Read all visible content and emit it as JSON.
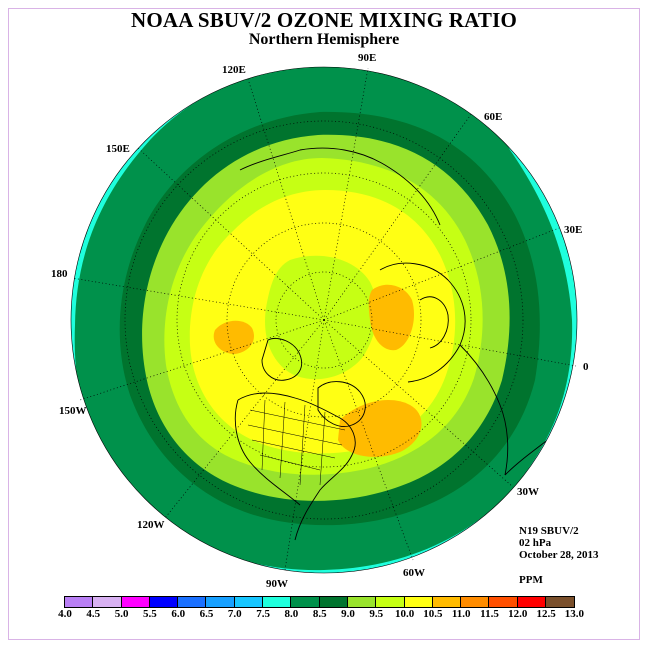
{
  "header": {
    "title": "NOAA SBUV/2 OZONE MIXING RATIO",
    "subtitle": "Northern Hemisphere"
  },
  "longitude_labels": {
    "lon_90e": "90E",
    "lon_60e": "60E",
    "lon_30e": "30E",
    "lon_0": "0",
    "lon_30w": "30W",
    "lon_60w": "60W",
    "lon_90w": "90W",
    "lon_120w": "120W",
    "lon_150w": "150W",
    "lon_180": "180",
    "lon_150e": "150E",
    "lon_120e": "120E"
  },
  "info": {
    "instrument": "N19 SBUV/2",
    "level": "02 hPa",
    "date": "October 28, 2013",
    "units": "PPM"
  },
  "colorbar": {
    "colors": [
      "#b97ff5",
      "#d8b1f2",
      "#ff00ff",
      "#0000ff",
      "#1a70ff",
      "#17a0ff",
      "#17c6ff",
      "#1fffdd",
      "#00914b",
      "#00742e",
      "#99e32c",
      "#c6ff14",
      "#ffff14",
      "#ffbb00",
      "#ff8c00",
      "#ff4f00",
      "#ff0000",
      "#7a4f2b"
    ],
    "labels": [
      "4.0",
      "4.5",
      "5.0",
      "5.5",
      "6.0",
      "6.5",
      "7.0",
      "7.5",
      "8.0",
      "8.5",
      "9.0",
      "9.5",
      "10.0",
      "10.5",
      "11.0",
      "11.5",
      "12.0",
      "12.5",
      "13.0"
    ]
  },
  "field": {
    "max_value": "10.5-11.0",
    "min_value": "7.5-8.0",
    "projection": "north polar stereographic",
    "grid": "dotted lat/lon graticule"
  }
}
